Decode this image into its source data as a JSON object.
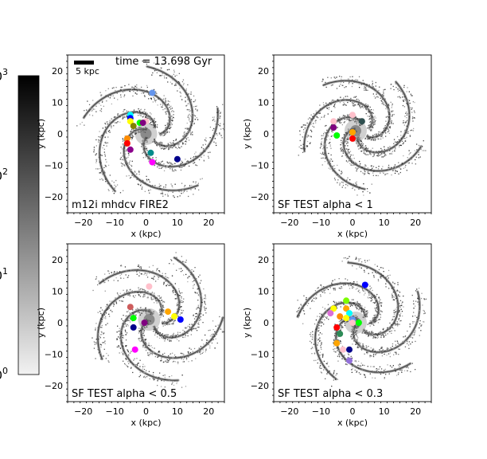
{
  "figure": {
    "time_label": "time = 13.698 Gyr",
    "scale_bar_label": "5 kpc",
    "colorbar": {
      "ticks": [
        {
          "label": "0",
          "sup": "0"
        },
        {
          "label": "0",
          "sup": "1"
        },
        {
          "label": "0",
          "sup": "2"
        },
        {
          "label": "0",
          "sup": "3"
        }
      ],
      "cmap_from": "#f2f2f2",
      "cmap_to": "#000000"
    }
  },
  "chart_data": [
    {
      "type": "scatter",
      "title": "m12i mhdcv FIRE2",
      "xlabel": "x (kpc)",
      "ylabel": "y (kpc)",
      "xlim": [
        -25,
        25
      ],
      "ylim": [
        -25,
        25
      ],
      "xticks": [
        -20,
        -10,
        0,
        10,
        20
      ],
      "yticks": [
        -20,
        -10,
        0,
        10,
        20
      ],
      "points": [
        {
          "x": 2,
          "y": 13,
          "color": "#6495ed"
        },
        {
          "x": -5,
          "y": 6,
          "color": "#00ffff"
        },
        {
          "x": -5,
          "y": 5,
          "color": "#0000ff"
        },
        {
          "x": -5,
          "y": 4,
          "color": "#ffff00"
        },
        {
          "x": 0,
          "y": 4,
          "color": "#ffc0cb"
        },
        {
          "x": -2,
          "y": 3.5,
          "color": "#00ff00"
        },
        {
          "x": -1,
          "y": 3.5,
          "color": "#800080"
        },
        {
          "x": -4,
          "y": 2.5,
          "color": "#808000"
        },
        {
          "x": -6,
          "y": -1.5,
          "color": "#ff8c00"
        },
        {
          "x": -6,
          "y": -3,
          "color": "#ff0000"
        },
        {
          "x": -5,
          "y": -5,
          "color": "#8b008b"
        },
        {
          "x": 1.5,
          "y": -6,
          "color": "#008b8b"
        },
        {
          "x": 10,
          "y": -8,
          "color": "#00008b"
        },
        {
          "x": 2,
          "y": -9,
          "color": "#ff00ff"
        }
      ]
    },
    {
      "type": "scatter",
      "title": "SF TEST alpha < 1",
      "xlabel": "x (kpc)",
      "ylabel": "y (kpc)",
      "xlim": [
        -25,
        25
      ],
      "ylim": [
        -25,
        25
      ],
      "xticks": [
        -20,
        -10,
        0,
        10,
        20
      ],
      "yticks": [
        -20,
        -10,
        0,
        10,
        20
      ],
      "points": [
        {
          "x": 0,
          "y": 6,
          "color": "#ffc0cb"
        },
        {
          "x": -6,
          "y": 4,
          "color": "#ffc0cb"
        },
        {
          "x": 3,
          "y": 4,
          "color": "#2f4f4f"
        },
        {
          "x": -6,
          "y": 2,
          "color": "#800080"
        },
        {
          "x": 0,
          "y": 0.5,
          "color": "#ffa500"
        },
        {
          "x": -5,
          "y": -0.5,
          "color": "#00ff00"
        },
        {
          "x": 0,
          "y": -1.5,
          "color": "#ff0000"
        }
      ]
    },
    {
      "type": "scatter",
      "title": "SF TEST alpha < 0.5",
      "xlabel": "x (kpc)",
      "ylabel": "y (kpc)",
      "xlim": [
        -25,
        25
      ],
      "ylim": [
        -25,
        25
      ],
      "xticks": [
        -20,
        -10,
        0,
        10,
        20
      ],
      "yticks": [
        -20,
        -10,
        0,
        10,
        20
      ],
      "points": [
        {
          "x": 1,
          "y": 11.5,
          "color": "#ffc0cb"
        },
        {
          "x": -5,
          "y": 5,
          "color": "#cd5c5c"
        },
        {
          "x": 7,
          "y": 3.5,
          "color": "#ffa500"
        },
        {
          "x": 9,
          "y": 2,
          "color": "#ffff00"
        },
        {
          "x": -4,
          "y": 1.5,
          "color": "#00ff00"
        },
        {
          "x": 11,
          "y": 1,
          "color": "#0000ff"
        },
        {
          "x": -0.5,
          "y": 0,
          "color": "#800080"
        },
        {
          "x": -4,
          "y": -1.5,
          "color": "#00008b"
        },
        {
          "x": -3.5,
          "y": -8.5,
          "color": "#ff00ff"
        }
      ]
    },
    {
      "type": "scatter",
      "title": "SF TEST alpha < 0.3",
      "xlabel": "x (kpc)",
      "ylabel": "y (kpc)",
      "xlim": [
        -25,
        25
      ],
      "ylim": [
        -25,
        25
      ],
      "xticks": [
        -20,
        -10,
        0,
        10,
        20
      ],
      "yticks": [
        -20,
        -10,
        0,
        10,
        20
      ],
      "points": [
        {
          "x": 4,
          "y": 12,
          "color": "#0000ff"
        },
        {
          "x": -2,
          "y": 7,
          "color": "#7cfc00"
        },
        {
          "x": -6,
          "y": 4.5,
          "color": "#ffff00"
        },
        {
          "x": -2,
          "y": 4.5,
          "color": "#ffa500"
        },
        {
          "x": -7,
          "y": 3,
          "color": "#da70d6"
        },
        {
          "x": -1,
          "y": 3,
          "color": "#00ffff"
        },
        {
          "x": -4,
          "y": 2,
          "color": "#ff8c00"
        },
        {
          "x": -2,
          "y": 1.5,
          "color": "#ffff00"
        },
        {
          "x": 0,
          "y": 1,
          "color": "#6495ed"
        },
        {
          "x": -7,
          "y": 0,
          "color": "#ffffff"
        },
        {
          "x": 0,
          "y": 0,
          "color": "#ffc0cb"
        },
        {
          "x": 2,
          "y": 0,
          "color": "#00ff00"
        },
        {
          "x": -5,
          "y": -1.5,
          "color": "#ff0000"
        },
        {
          "x": -4,
          "y": -3.5,
          "color": "#2e8b57"
        },
        {
          "x": -5,
          "y": -6.5,
          "color": "#ffa500"
        },
        {
          "x": -3,
          "y": -8.5,
          "color": "#ffc0cb"
        },
        {
          "x": -1,
          "y": -8.5,
          "color": "#00008b"
        },
        {
          "x": -1,
          "y": -12,
          "color": "#9370db"
        }
      ]
    }
  ]
}
